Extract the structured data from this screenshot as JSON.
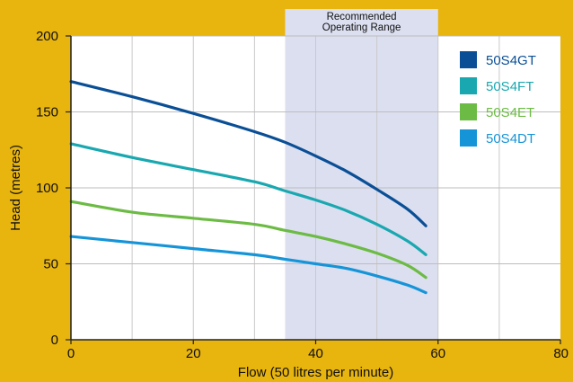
{
  "chart_data": {
    "type": "line",
    "xlabel": "Flow (50 litres per minute)",
    "ylabel": "Head (metres)",
    "xlim": [
      0,
      80
    ],
    "ylim": [
      0,
      200
    ],
    "x_ticks": [
      0,
      20,
      40,
      60,
      80
    ],
    "y_ticks": [
      0,
      50,
      100,
      150,
      200
    ],
    "grid": true,
    "legend_position": "top-right",
    "highlight_band": {
      "label_line1": "Recommended",
      "label_line2": "Operating Range",
      "x_range": [
        35,
        60
      ],
      "color": "#dcdff0"
    },
    "background_color": "#e8b40e",
    "plot_background": "#ffffff",
    "series": [
      {
        "name": "50S4GT",
        "color": "#0a4f96",
        "x": [
          0,
          10,
          20,
          30,
          35,
          40,
          45,
          50,
          55,
          58
        ],
        "y": [
          170,
          160,
          149,
          137,
          130,
          121,
          111,
          99,
          86,
          75
        ]
      },
      {
        "name": "50S4FT",
        "color": "#1aa8b0",
        "x": [
          0,
          10,
          20,
          30,
          35,
          40,
          45,
          50,
          55,
          58
        ],
        "y": [
          129,
          120,
          112,
          104,
          98,
          92,
          85,
          76,
          65,
          56
        ]
      },
      {
        "name": "50S4ET",
        "color": "#6cbb44",
        "x": [
          0,
          10,
          20,
          30,
          35,
          40,
          45,
          50,
          55,
          58
        ],
        "y": [
          91,
          84,
          80,
          76,
          72,
          68,
          63,
          57,
          49,
          41
        ]
      },
      {
        "name": "50S4DT",
        "color": "#1694d8",
        "x": [
          0,
          10,
          20,
          30,
          35,
          40,
          45,
          50,
          55,
          58
        ],
        "y": [
          68,
          64,
          60,
          56,
          53,
          50,
          47,
          42,
          36,
          31
        ]
      }
    ]
  }
}
